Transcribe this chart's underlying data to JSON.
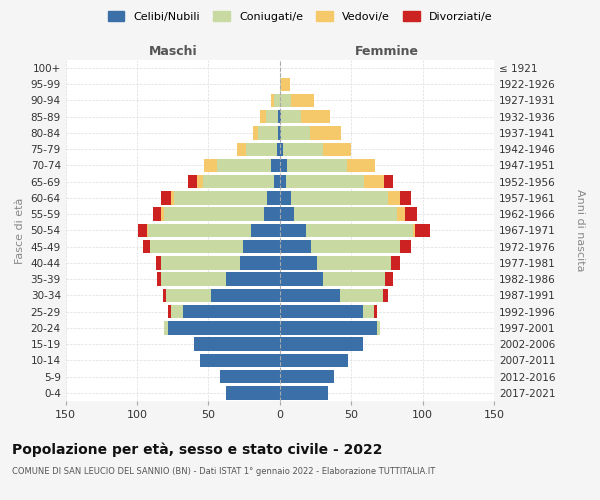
{
  "age_groups": [
    "0-4",
    "5-9",
    "10-14",
    "15-19",
    "20-24",
    "25-29",
    "30-34",
    "35-39",
    "40-44",
    "45-49",
    "50-54",
    "55-59",
    "60-64",
    "65-69",
    "70-74",
    "75-79",
    "80-84",
    "85-89",
    "90-94",
    "95-99",
    "100+"
  ],
  "birth_years": [
    "2017-2021",
    "2012-2016",
    "2007-2011",
    "2002-2006",
    "1997-2001",
    "1992-1996",
    "1987-1991",
    "1982-1986",
    "1977-1981",
    "1972-1976",
    "1967-1971",
    "1962-1966",
    "1957-1961",
    "1952-1956",
    "1947-1951",
    "1942-1946",
    "1937-1941",
    "1932-1936",
    "1927-1931",
    "1922-1926",
    "≤ 1921"
  ],
  "maschi": {
    "celibi": [
      38,
      42,
      56,
      60,
      78,
      68,
      48,
      38,
      28,
      26,
      20,
      11,
      9,
      4,
      6,
      2,
      1,
      1,
      0,
      0,
      0
    ],
    "coniugati": [
      0,
      0,
      0,
      0,
      3,
      8,
      32,
      45,
      55,
      65,
      72,
      70,
      65,
      50,
      38,
      22,
      14,
      9,
      4,
      0,
      0
    ],
    "vedovi": [
      0,
      0,
      0,
      0,
      0,
      0,
      0,
      0,
      0,
      0,
      1,
      2,
      2,
      4,
      9,
      6,
      4,
      4,
      2,
      0,
      0
    ],
    "divorziati": [
      0,
      0,
      0,
      0,
      0,
      2,
      2,
      3,
      4,
      5,
      6,
      6,
      7,
      6,
      0,
      0,
      0,
      0,
      0,
      0,
      0
    ]
  },
  "femmine": {
    "nubili": [
      34,
      38,
      48,
      58,
      68,
      58,
      42,
      30,
      26,
      22,
      18,
      10,
      8,
      4,
      5,
      2,
      1,
      1,
      0,
      0,
      0
    ],
    "coniugate": [
      0,
      0,
      0,
      0,
      2,
      8,
      30,
      44,
      52,
      62,
      75,
      72,
      68,
      55,
      42,
      28,
      20,
      14,
      8,
      1,
      0
    ],
    "vedove": [
      0,
      0,
      0,
      0,
      0,
      0,
      0,
      0,
      0,
      0,
      2,
      6,
      8,
      14,
      20,
      20,
      22,
      20,
      16,
      6,
      0
    ],
    "divorziate": [
      0,
      0,
      0,
      0,
      0,
      2,
      4,
      5,
      6,
      8,
      10,
      8,
      8,
      6,
      0,
      0,
      0,
      0,
      0,
      0,
      0
    ]
  },
  "colors": {
    "celibi_nubili": "#3a6fa8",
    "coniugati": "#c8d9a2",
    "vedovi": "#f5c96a",
    "divorziati": "#cc2222"
  },
  "xlim": 150,
  "title": "Popolazione per età, sesso e stato civile - 2022",
  "subtitle": "COMUNE DI SAN LEUCIO DEL SANNIO (BN) - Dati ISTAT 1° gennaio 2022 - Elaborazione TUTTITALIA.IT",
  "ylabel_left": "Fasce di età",
  "ylabel_right": "Anni di nascita",
  "legend_labels": [
    "Celibi/Nubili",
    "Coniugati/e",
    "Vedovi/e",
    "Divorziati/e"
  ],
  "bg_color": "#f5f5f5",
  "plot_bg": "#ffffff"
}
